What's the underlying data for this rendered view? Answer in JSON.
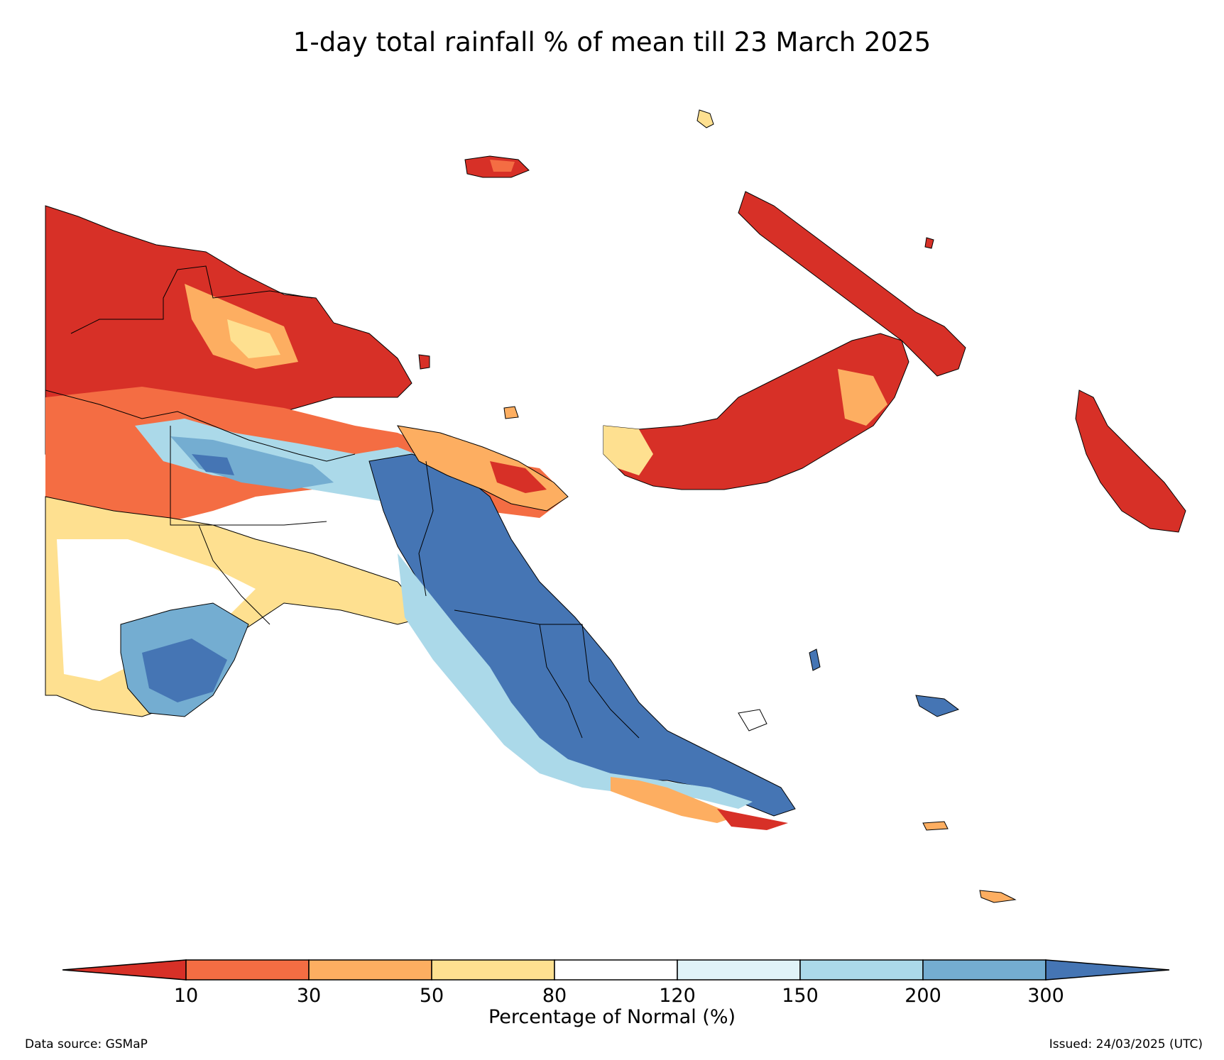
{
  "title": "1-day total rainfall % of mean till 23 March 2025",
  "colorbar": {
    "title": "Percentage of Normal (%)",
    "ticks": [
      "10",
      "30",
      "50",
      "80",
      "120",
      "150",
      "200",
      "300"
    ],
    "colors": [
      "#d73027",
      "#f46d43",
      "#fdae61",
      "#fee090",
      "#ffffff",
      "#e0f3f8",
      "#abd9e9",
      "#74add1",
      "#4575b4"
    ],
    "extend": "both"
  },
  "legend_classes": [
    {
      "range": "<10",
      "color": "#d73027"
    },
    {
      "range": "10-30",
      "color": "#f46d43"
    },
    {
      "range": "30-50",
      "color": "#fdae61"
    },
    {
      "range": "50-80",
      "color": "#fee090"
    },
    {
      "range": "80-120",
      "color": "#ffffff"
    },
    {
      "range": "120-150",
      "color": "#e0f3f8"
    },
    {
      "range": "150-200",
      "color": "#abd9e9"
    },
    {
      "range": "200-300",
      "color": "#74add1"
    },
    {
      "range": ">300",
      "color": "#4575b4"
    }
  ],
  "footer": {
    "source": "Data source: GSMaP",
    "issued": "Issued: 24/03/2025 (UTC)"
  }
}
